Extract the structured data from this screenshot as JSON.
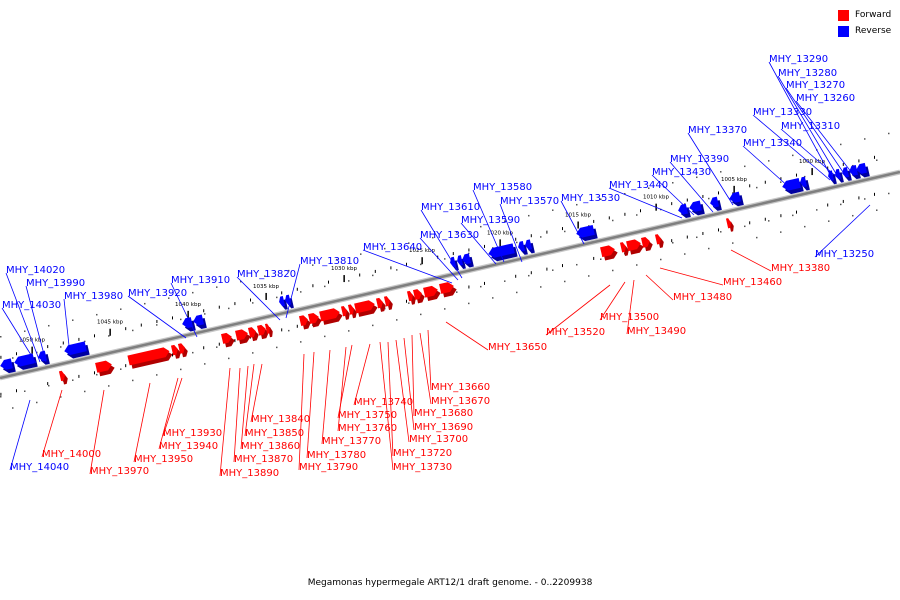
{
  "caption": "Megamonas hypermegale ART12/1 draft genome. - 0..2209938",
  "legend": [
    {
      "label": "Forward",
      "color": "#ff0000"
    },
    {
      "label": "Reverse",
      "color": "#0000ff"
    }
  ],
  "colors": {
    "forward": "#ff0000",
    "reverse": "#0000ff",
    "backbone": "#7f7f7f"
  },
  "axis_ticks": [
    {
      "label": "1050 kbp",
      "kbp": 1050
    },
    {
      "label": "1045 kbp",
      "kbp": 1045
    },
    {
      "label": "1040 kbp",
      "kbp": 1040
    },
    {
      "label": "1035 kbp",
      "kbp": 1035
    },
    {
      "label": "1030 kbp",
      "kbp": 1030
    },
    {
      "label": "1025 kbp",
      "kbp": 1025
    },
    {
      "label": "1020 kbp",
      "kbp": 1020
    },
    {
      "label": "1015 kbp",
      "kbp": 1015
    },
    {
      "label": "1010 kbp",
      "kbp": 1010
    },
    {
      "label": "1005 kbp",
      "kbp": 1005
    },
    {
      "label": "1000 kbp",
      "kbp": 1000
    }
  ],
  "reverse_genes": [
    "MHY_14040",
    "MHY_14030",
    "MHY_14020",
    "MHY_13990",
    "MHY_13980",
    "MHY_13920",
    "MHY_13910",
    "MHY_13820",
    "MHY_13810",
    "MHY_13640",
    "MHY_13630",
    "MHY_13610",
    "MHY_13590",
    "MHY_13580",
    "MHY_13570",
    "MHY_13530",
    "MHY_13440",
    "MHY_13430",
    "MHY_13390",
    "MHY_13370",
    "MHY_13340",
    "MHY_13330",
    "MHY_13310",
    "MHY_13290",
    "MHY_13280",
    "MHY_13270",
    "MHY_13260",
    "MHY_13250"
  ],
  "forward_genes": [
    "MHY_14000",
    "MHY_13970",
    "MHY_13950",
    "MHY_13940",
    "MHY_13930",
    "MHY_13890",
    "MHY_13870",
    "MHY_13860",
    "MHY_13850",
    "MHY_13840",
    "MHY_13790",
    "MHY_13780",
    "MHY_13770",
    "MHY_13760",
    "MHY_13750",
    "MHY_13740",
    "MHY_13730",
    "MHY_13720",
    "MHY_13700",
    "MHY_13690",
    "MHY_13680",
    "MHY_13670",
    "MHY_13660",
    "MHY_13650",
    "MHY_13520",
    "MHY_13500",
    "MHY_13490",
    "MHY_13480",
    "MHY_13460",
    "MHY_13380"
  ]
}
